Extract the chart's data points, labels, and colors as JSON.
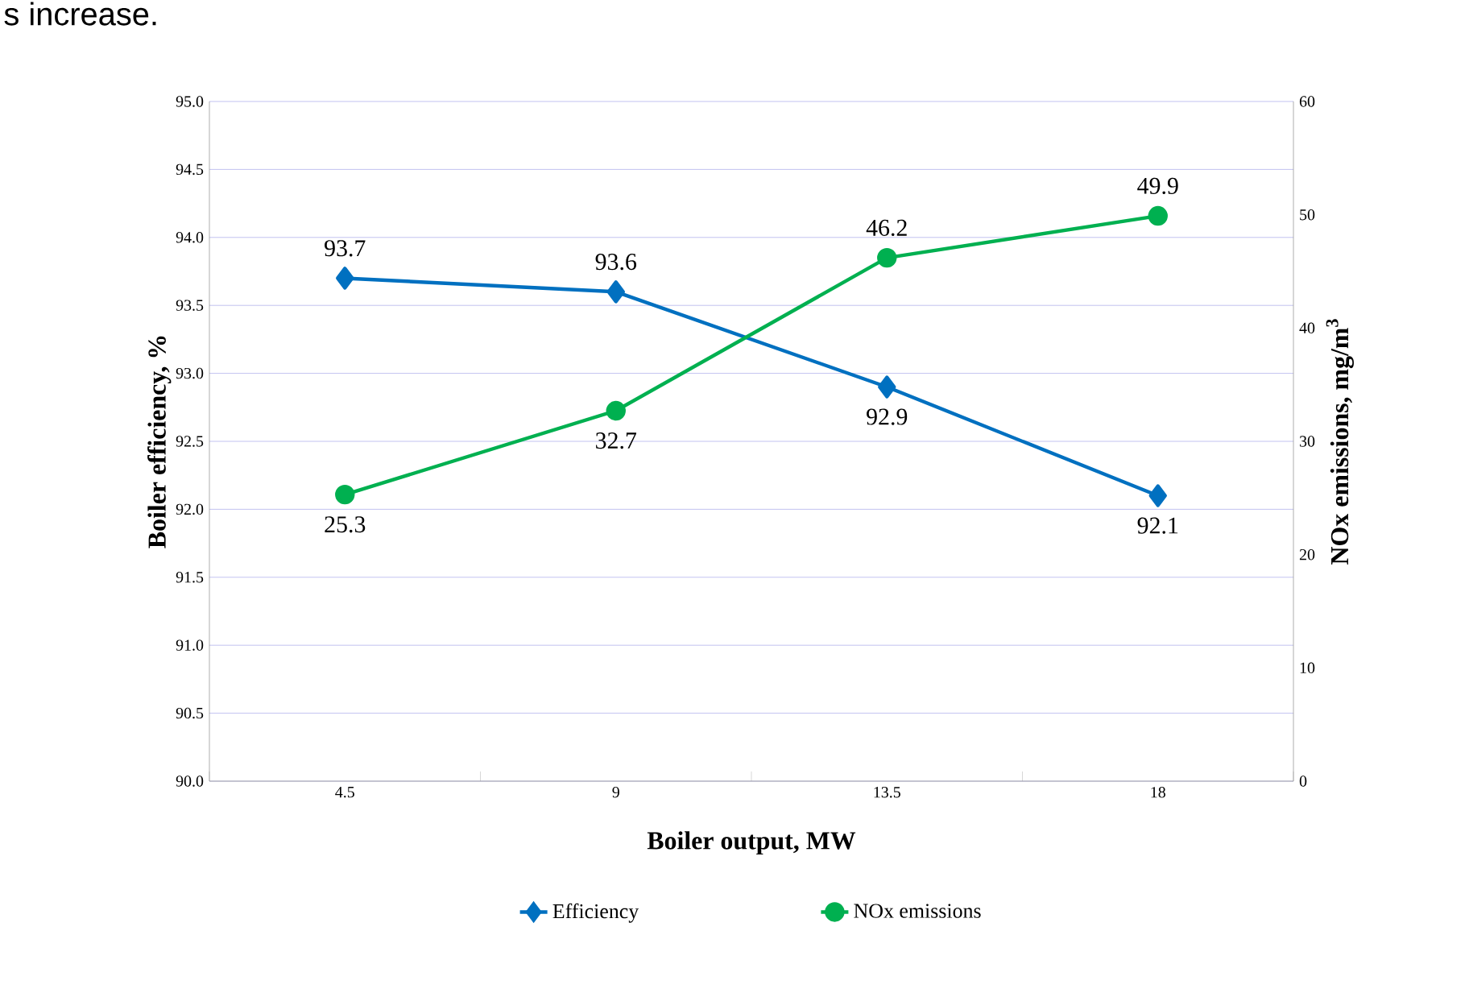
{
  "chart_data": {
    "type": "line",
    "xlabel": "Boiler output, MW",
    "ylabel": "Boiler efficiency, %",
    "y2label": "NOx emissions, mg/m$^{3}$",
    "annotations": [
      "s increase."
    ],
    "categories": [
      "4.5",
      "9",
      "13.5",
      "18"
    ],
    "series": [
      {
        "name": "Efficiency",
        "color": "#0070c0",
        "marker": "diamond",
        "values": [
          93.7,
          93.6,
          92.9,
          92.1
        ]
      },
      {
        "name": "NOx emissions",
        "color": "#00b050",
        "marker": "circle",
        "axis": "y2",
        "values": [
          25.3,
          32.7,
          46.2,
          49.9
        ]
      }
    ],
    "ylim": [
      90,
      95
    ],
    "yticks": [
      {
        "value": 90,
        "label": "90.0"
      },
      {
        "value": 90.5,
        "label": "90.5"
      },
      {
        "value": 91,
        "label": "91.0"
      },
      {
        "value": 91.5,
        "label": "91.5"
      },
      {
        "value": 92,
        "label": "92.0"
      },
      {
        "value": 92.5,
        "label": "92.5"
      },
      {
        "value": 93,
        "label": "93.0"
      },
      {
        "value": 93.5,
        "label": "93.5"
      },
      {
        "value": 94,
        "label": "94.0"
      },
      {
        "value": 94.5,
        "label": "94.5"
      },
      {
        "value": 95,
        "label": "95.0"
      }
    ],
    "y2lim": [
      0,
      60
    ],
    "y2ticks": [
      0,
      10,
      20,
      30,
      40,
      50,
      60
    ],
    "grid": "y",
    "legend": "bottom",
    "data_labels": true,
    "line_style": "solid"
  }
}
